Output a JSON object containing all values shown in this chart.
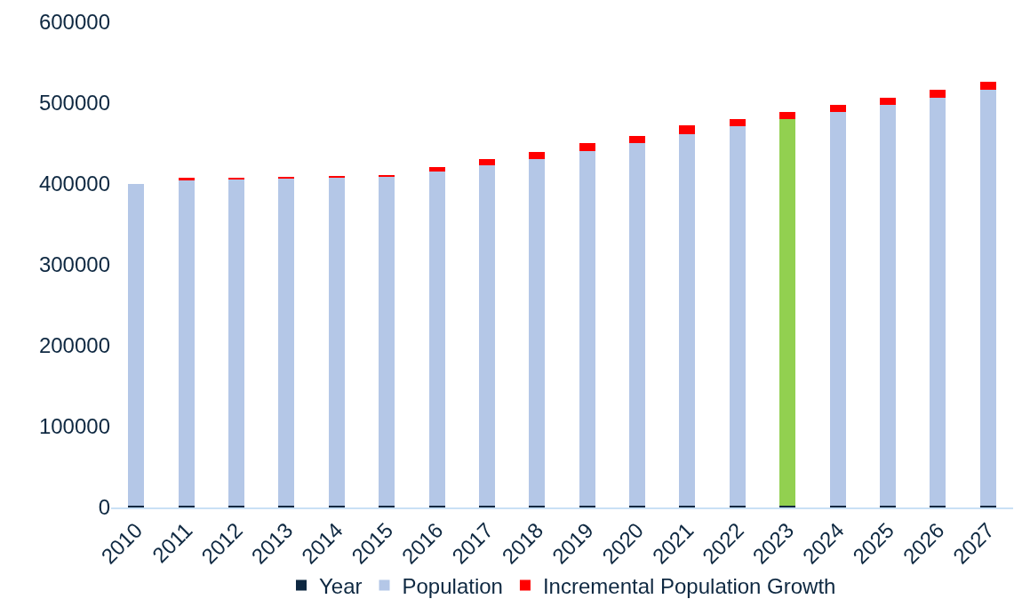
{
  "chart_data": {
    "type": "bar",
    "stacked": true,
    "categories": [
      "2010",
      "2011",
      "2012",
      "2013",
      "2014",
      "2015",
      "2016",
      "2017",
      "2018",
      "2019",
      "2020",
      "2021",
      "2022",
      "2023",
      "2024",
      "2025",
      "2026",
      "2027"
    ],
    "series": [
      {
        "name": "Year",
        "color": "#0e2841",
        "values": [
          2010,
          2011,
          2012,
          2013,
          2014,
          2015,
          2016,
          2017,
          2018,
          2019,
          2020,
          2021,
          2022,
          2023,
          2024,
          2025,
          2026,
          2027
        ]
      },
      {
        "name": "Population",
        "color": "#b4c7e7",
        "colors": [
          null,
          null,
          null,
          null,
          null,
          null,
          null,
          null,
          null,
          null,
          null,
          null,
          null,
          "#92d050",
          null,
          null,
          null,
          null
        ],
        "values": [
          398000,
          402000,
          404000,
          405000,
          406000,
          407000,
          413000,
          421000,
          429000,
          439000,
          448000,
          460000,
          469000,
          478000,
          487000,
          496000,
          505000,
          515000
        ]
      },
      {
        "name": "Incremental Population Growth",
        "color": "#ff0000",
        "values": [
          null,
          4000,
          2000,
          1000,
          1000,
          1000,
          6000,
          8000,
          8000,
          10000,
          9000,
          11000,
          9000,
          9000,
          9000,
          9000,
          9000,
          9000
        ]
      }
    ],
    "ylim": [
      0,
      600000
    ],
    "yticks": [
      0,
      100000,
      200000,
      300000,
      400000,
      500000,
      600000
    ],
    "legend": "bottom"
  }
}
